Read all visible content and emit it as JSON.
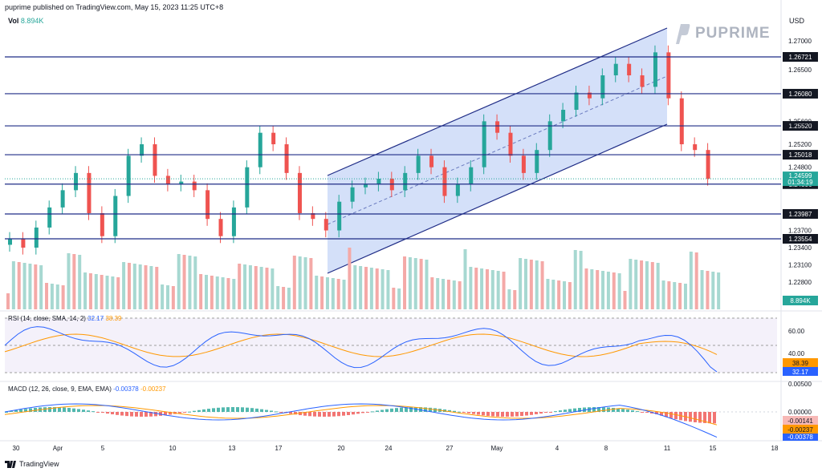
{
  "header": {
    "text": "puprime published on TradingView.com, May 15, 2023 11:25 UTC+8"
  },
  "brand": {
    "logo_text": "PUPRIME"
  },
  "currency": "USD",
  "volume": {
    "label": "Vol",
    "value": "8.894K"
  },
  "rsi": {
    "label": "RSI (14, close, SMA, 14, 2)",
    "value1": "32.17",
    "value2": "38.39"
  },
  "macd": {
    "label": "MACD (12, 26, close, 9, EMA, EMA)",
    "value1": "-0.00378",
    "value2": "-0.00237"
  },
  "footer": {
    "text": "TradingView"
  },
  "colors": {
    "up": "#26a69a",
    "down": "#ef5350",
    "level": "#1f2c86",
    "channel_fill": "#c9d8f7",
    "rsi_line": "#2962ff",
    "rsi_signal": "#ff9800"
  },
  "chart_data": {
    "type": "candlestick",
    "price_axis_ticks": [
      "1.27000",
      "1.26500",
      "1.25600",
      "1.25200",
      "1.24800",
      "1.23700",
      "1.23400",
      "1.23100",
      "1.22800"
    ],
    "time_axis_ticks": [
      "30",
      "Apr",
      "5",
      "10",
      "13",
      "17",
      "20",
      "24",
      "27",
      "May",
      "4",
      "8",
      "11",
      "15",
      "18"
    ],
    "levels": [
      {
        "label": "1.26721",
        "value": 1.26721
      },
      {
        "label": "1.26080",
        "value": 1.2608
      },
      {
        "label": "1.25520",
        "value": 1.2552
      },
      {
        "label": "1.25018",
        "value": 1.25018
      },
      {
        "label": "1.24506",
        "value": 1.24506
      },
      {
        "label": "1.23987",
        "value": 1.23987
      },
      {
        "label": "1.23554",
        "value": 1.23554
      }
    ],
    "current_price": {
      "label": "1.24599",
      "countdown": "01:34:19"
    },
    "volume_last": "8.894K",
    "rsi_axis": [
      "60.00",
      "40.00"
    ],
    "rsi_values": {
      "rsi": "32.17",
      "signal": "38.39"
    },
    "macd_axis": [
      "0.00500",
      "0.00000"
    ],
    "macd_values": {
      "histogram": "-0.00141",
      "signal": "-0.00237",
      "macd": "-0.00378"
    },
    "closes": [
      1.2355,
      1.234,
      1.2375,
      1.241,
      1.244,
      1.247,
      1.24,
      1.236,
      1.243,
      1.25,
      1.252,
      1.2465,
      1.245,
      1.2455,
      1.244,
      1.239,
      1.236,
      1.241,
      1.248,
      1.254,
      1.252,
      1.247,
      1.24,
      1.239,
      1.237,
      1.242,
      1.2445,
      1.245,
      1.246,
      1.244,
      1.247,
      1.25,
      1.248,
      1.243,
      1.245,
      1.248,
      1.256,
      1.254,
      1.25,
      1.247,
      1.251,
      1.256,
      1.258,
      1.261,
      1.26,
      1.264,
      1.266,
      1.264,
      1.262,
      1.268,
      1.26,
      1.252,
      1.251,
      1.246
    ]
  }
}
